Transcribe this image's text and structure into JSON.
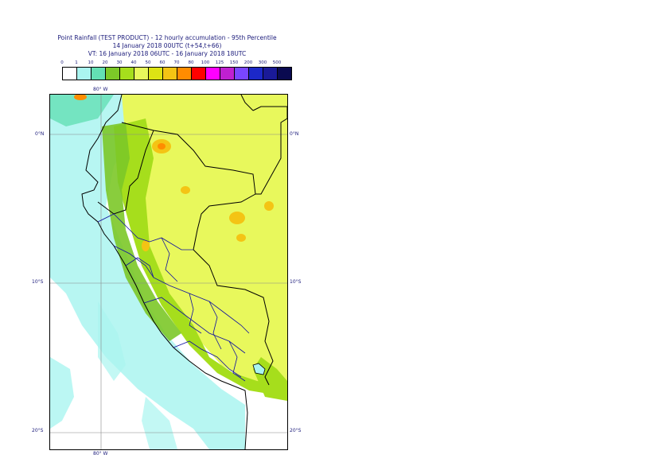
{
  "title": {
    "line1": "Point Rainfall (TEST PRODUCT) - 12 hourly accumulation - 95th Percentile",
    "line2": "14 January 2018 00UTC (t+54,t+66)",
    "line3": "VT: 16 January 2018 06UTC - 16 January 2018 18UTC"
  },
  "legend": {
    "labels": [
      "0",
      "1",
      "10",
      "20",
      "30",
      "40",
      "50",
      "60",
      "70",
      "80",
      "100",
      "125",
      "150",
      "200",
      "300",
      "500"
    ],
    "colors": [
      "#ffffff",
      "#aaf5f0",
      "#63e0b4",
      "#7cc828",
      "#a6de1c",
      "#e8f85c",
      "#dde414",
      "#f4c414",
      "#ff8c00",
      "#ff0000",
      "#ff00ff",
      "#c020d0",
      "#7a46ff",
      "#1c28c8",
      "#1a1a98",
      "#0a0a50"
    ]
  },
  "map": {
    "lon_labels": [
      "80° W",
      "80° W"
    ],
    "lat_labels": [
      "0°N",
      "10°S",
      "20°S"
    ],
    "lat_labels_right": [
      "0°N",
      "10°S",
      "20°S"
    ]
  }
}
